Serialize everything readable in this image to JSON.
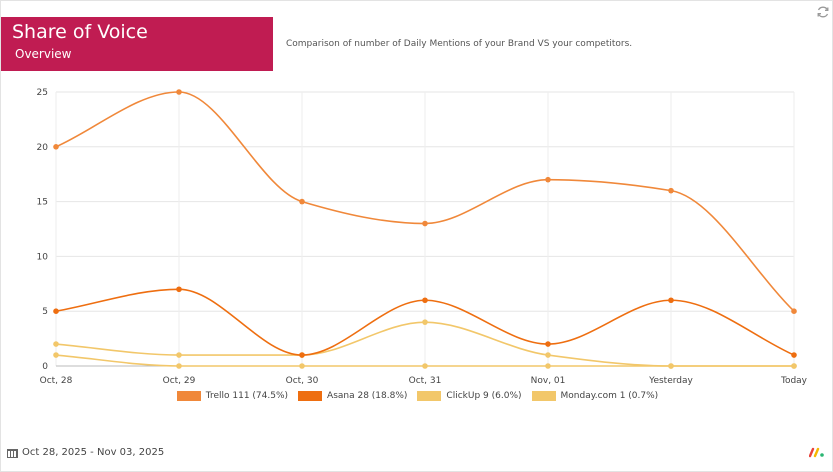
{
  "header": {
    "title": "Share of Voice",
    "subtitle": "Overview",
    "description": "Comparison of number of Daily Mentions of your Brand VS your competitors."
  },
  "icons": {
    "refresh": "refresh-icon",
    "calendar": "calendar-icon",
    "logo": "brand-logo-icon"
  },
  "footer": {
    "date_range": "Oct 28, 2025 - Nov 03, 2025"
  },
  "chart_data": {
    "type": "line",
    "categories": [
      "Oct, 28",
      "Oct, 29",
      "Oct, 30",
      "Oct, 31",
      "Nov, 01",
      "Yesterday",
      "Today"
    ],
    "ylim": [
      0,
      25
    ],
    "yticks": [
      0,
      5,
      10,
      15,
      20,
      25
    ],
    "grid": true,
    "legend_position": "bottom",
    "series": [
      {
        "name": "Trello",
        "legend": "Trello 111 (74.5%)",
        "color": "#f0883a",
        "values": [
          20,
          25,
          15,
          13,
          17,
          16,
          5
        ]
      },
      {
        "name": "Asana",
        "legend": "Asana 28 (18.8%)",
        "color": "#ee6e10",
        "values": [
          5,
          7,
          1,
          6,
          2,
          6,
          1
        ]
      },
      {
        "name": "ClickUp",
        "legend": "ClickUp 9 (6.0%)",
        "color": "#f2c76a",
        "values": [
          2,
          1,
          1,
          4,
          1,
          0,
          0
        ]
      },
      {
        "name": "Monday.com",
        "legend": "Monday.com 1 (0.7%)",
        "color": "#f2c76a",
        "values": [
          1,
          0,
          0,
          0,
          0,
          0,
          0
        ]
      }
    ]
  }
}
